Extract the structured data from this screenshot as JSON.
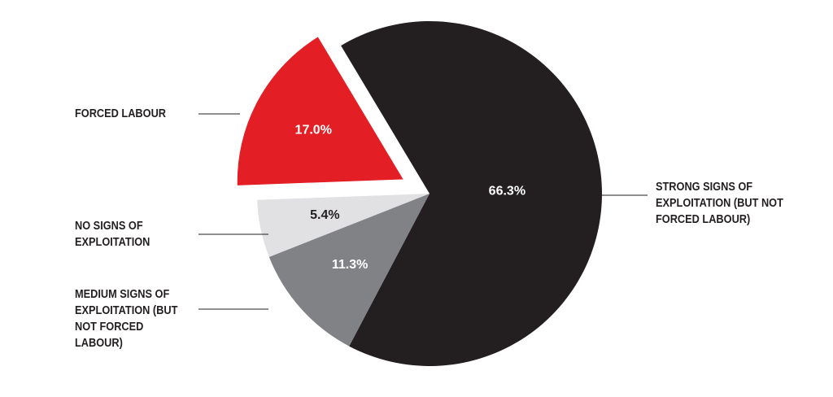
{
  "chart_data": {
    "type": "pie",
    "categories": [
      "STRONG SIGNS OF EXPLOITATION (BUT NOT FORCED LABOUR)",
      "MEDIUM SIGNS OF EXPLOITATION (BUT NOT FORCED LABOUR)",
      "NO SIGNS OF EXPLOITATION",
      "FORCED LABOUR"
    ],
    "values": [
      66.3,
      11.3,
      5.4,
      17.0
    ],
    "value_labels": [
      "66.3%",
      "11.3%",
      "5.4%",
      "17.0%"
    ],
    "colors": [
      "#231f20",
      "#808285",
      "#e1e1e3",
      "#e31e25"
    ],
    "label_colors": [
      "#ffffff",
      "#ffffff",
      "#231f20",
      "#ffffff"
    ],
    "exploded": [
      false,
      false,
      false,
      true
    ]
  }
}
